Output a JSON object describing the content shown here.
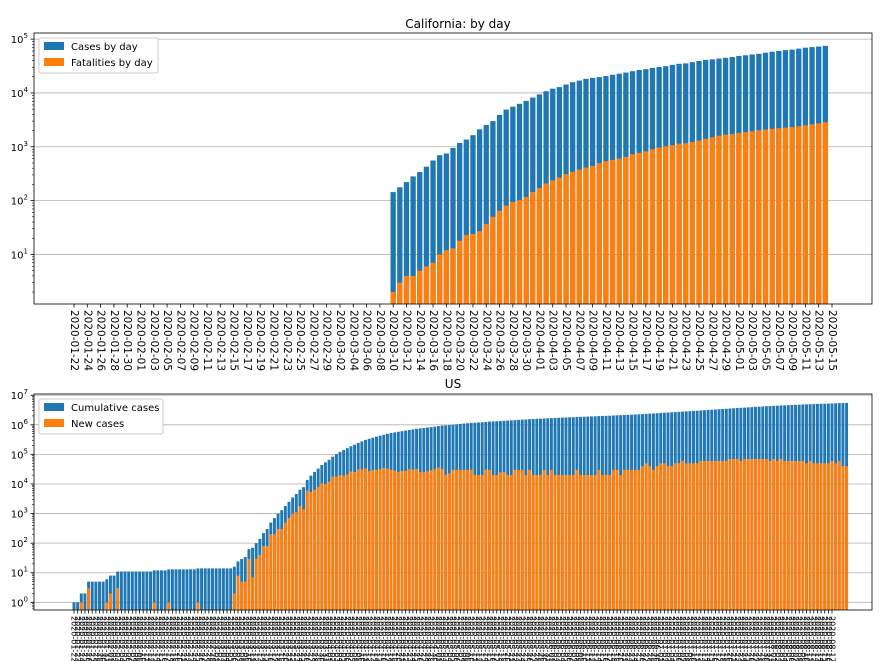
{
  "chart_data": [
    {
      "type": "bar",
      "title": "California: by day",
      "xlabel": "",
      "ylabel": "",
      "yscale": "log",
      "ylim": [
        1.2,
        130000
      ],
      "grid": "y",
      "legend_position": "upper-left",
      "colors": {
        "cases": "#1f77b4",
        "fatalities": "#ff7f0e"
      },
      "x_start": "2020-01-22",
      "x_end": "2020-05-15",
      "x_tick_every_days": 2,
      "data_start": "2020-03-10",
      "series": [
        {
          "name": "Cases by day",
          "values": [
            144,
            177,
            221,
            282,
            340,
            426,
            557,
            698,
            751,
            952,
            1177,
            1364,
            1642,
            2108,
            2538,
            2998,
            3899,
            4914,
            5565,
            6284,
            7138,
            8210,
            9399,
            10773,
            12026,
            12837,
            14336,
            15865,
            16957,
            18309,
            19043,
            19710,
            20615,
            21794,
            22795,
            23931,
            25356,
            26686,
            27677,
            29157,
            30333,
            31431,
            33261,
            34781,
            35465,
            37344,
            39254,
            41137,
            42164,
            43558,
            45031,
            46500,
            48747,
            50130,
            51915,
            53347,
            55884,
            58456,
            60616,
            62512,
            63779,
            66558,
            69329,
            71141,
            72798,
            74936
          ]
        },
        {
          "name": "Fatalities by day",
          "values": [
            2,
            3,
            4,
            4,
            5,
            6,
            7,
            10,
            12,
            13,
            18,
            23,
            24,
            27,
            37,
            50,
            65,
            81,
            94,
            102,
            117,
            145,
            171,
            208,
            238,
            268,
            311,
            343,
            376,
            411,
            442,
            495,
            542,
            571,
            604,
            651,
            727,
            771,
            821,
            900,
            967,
            1027,
            1069,
            1144,
            1161,
            1226,
            1314,
            1409,
            1506,
            1609,
            1684,
            1723,
            1800,
            1867,
            1943,
            2024,
            2098,
            2159,
            2208,
            2271,
            2331,
            2406,
            2505,
            2610,
            2719,
            2847
          ]
        }
      ]
    },
    {
      "type": "bar",
      "title": "US",
      "xlabel": "",
      "ylabel": "",
      "yscale": "log",
      "ylim": [
        0.55,
        11000000
      ],
      "grid": "y",
      "legend_position": "upper-left",
      "colors": {
        "cumulative": "#1f77b4",
        "new": "#ff7f0e"
      },
      "x_start": "2020-01-22",
      "x_end": "2020-08-17",
      "x_tick_every_days": 1,
      "series": [
        {
          "name": "Cumulative cases",
          "values": [
            1,
            1,
            2,
            2,
            5,
            5,
            5,
            5,
            5,
            6,
            8,
            8,
            11,
            11,
            11,
            11,
            11,
            11,
            11,
            11,
            11,
            11,
            12,
            12,
            12,
            12,
            13,
            13,
            13,
            13,
            13,
            13,
            13,
            13,
            14,
            14,
            14,
            14,
            14,
            14,
            14,
            14,
            14,
            14,
            16,
            24,
            29,
            34,
            63,
            70,
            100,
            140,
            220,
            300,
            500,
            700,
            1000,
            1300,
            1800,
            2500,
            3500,
            4600,
            6400,
            7800,
            13700,
            19100,
            25500,
            33300,
            43800,
            53700,
            65800,
            83800,
            101700,
            121500,
            140900,
            161800,
            188200,
            213400,
            244900,
            276100,
            309700,
            336800,
            366600,
            397100,
            428600,
            463400,
            496500,
            526800,
            555300,
            580600,
            608400,
            636200,
            668000,
            698500,
            730500,
            755800,
            780700,
            807700,
            836800,
            868500,
            904500,
            936000,
            957000,
            980000,
            1010000,
            1040000,
            1070000,
            1100000,
            1130000,
            1160000,
            1180000,
            1200000,
            1220000,
            1250000,
            1280000,
            1300000,
            1320000,
            1345000,
            1370000,
            1390000,
            1410000,
            1440000,
            1470000,
            1500000,
            1520000,
            1550000,
            1570000,
            1590000,
            1610000,
            1640000,
            1660000,
            1690000,
            1710000,
            1730000,
            1750000,
            1770000,
            1790000,
            1810000,
            1840000,
            1860000,
            1880000,
            1900000,
            1920000,
            1940000,
            1970000,
            1990000,
            2010000,
            2030000,
            2060000,
            2090000,
            2110000,
            2140000,
            2170000,
            2200000,
            2230000,
            2260000,
            2300000,
            2350000,
            2390000,
            2420000,
            2460000,
            2510000,
            2560000,
            2600000,
            2640000,
            2690000,
            2740000,
            2800000,
            2850000,
            2900000,
            2950000,
            3000000,
            3060000,
            3120000,
            3180000,
            3240000,
            3300000,
            3360000,
            3420000,
            3480000,
            3550000,
            3620000,
            3690000,
            3750000,
            3820000,
            3890000,
            3960000,
            4030000,
            4100000,
            4170000,
            4240000,
            4300000,
            4370000,
            4430000,
            4500000,
            4560000,
            4620000,
            4680000,
            4740000,
            4800000,
            4860000,
            4920000,
            4970000,
            5030000,
            5080000,
            5130000,
            5180000,
            5230000,
            5290000,
            5340000,
            5400000,
            5440000,
            5480000
          ]
        },
        {
          "name": "New cases",
          "values": [
            0,
            0,
            1,
            0,
            3,
            0,
            0,
            0,
            0,
            1,
            2,
            0,
            3,
            0,
            0,
            0,
            0,
            0,
            0,
            0,
            0,
            0,
            1,
            0,
            0,
            0,
            1,
            0,
            0,
            0,
            0,
            0,
            0,
            0,
            1,
            0,
            0,
            0,
            0,
            0,
            0,
            0,
            0,
            0,
            2,
            8,
            5,
            5,
            29,
            7,
            30,
            40,
            80,
            80,
            200,
            200,
            300,
            300,
            500,
            700,
            1000,
            1100,
            1800,
            1400,
            5900,
            5400,
            6400,
            7800,
            10500,
            9900,
            12100,
            18000,
            17900,
            19800,
            19400,
            20900,
            26400,
            25200,
            31500,
            31200,
            33600,
            27100,
            29800,
            30500,
            31500,
            34800,
            33100,
            30300,
            28500,
            25300,
            27800,
            27800,
            31800,
            30500,
            32000,
            25300,
            24900,
            27000,
            29100,
            31700,
            36000,
            31500,
            21000,
            23000,
            30000,
            30000,
            30000,
            30000,
            30000,
            30000,
            20000,
            20000,
            20000,
            30000,
            30000,
            20000,
            20000,
            25000,
            25000,
            20000,
            20000,
            30000,
            30000,
            30000,
            20000,
            30000,
            20000,
            20000,
            20000,
            30000,
            20000,
            30000,
            20000,
            20000,
            20000,
            20000,
            20000,
            20000,
            30000,
            20000,
            20000,
            20000,
            20000,
            20000,
            30000,
            20000,
            20000,
            20000,
            30000,
            30000,
            20000,
            30000,
            30000,
            30000,
            30000,
            30000,
            40000,
            50000,
            40000,
            30000,
            40000,
            50000,
            50000,
            40000,
            40000,
            50000,
            50000,
            60000,
            50000,
            50000,
            50000,
            50000,
            60000,
            60000,
            60000,
            60000,
            60000,
            60000,
            60000,
            60000,
            70000,
            70000,
            70000,
            60000,
            70000,
            70000,
            70000,
            70000,
            70000,
            70000,
            70000,
            60000,
            70000,
            60000,
            70000,
            60000,
            60000,
            60000,
            60000,
            60000,
            60000,
            50000,
            60000,
            50000,
            50000,
            50000,
            50000,
            50000,
            60000,
            50000,
            60000,
            40000,
            40000
          ]
        }
      ]
    }
  ]
}
